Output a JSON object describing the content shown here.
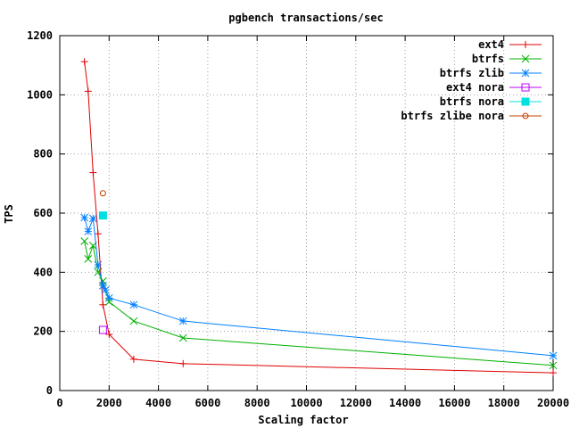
{
  "chart_data": {
    "type": "line",
    "title": "pgbench transactions/sec",
    "xlabel": "Scaling factor",
    "ylabel": "TPS",
    "xlim": [
      0,
      20000
    ],
    "ylim": [
      0,
      1200
    ],
    "xticks": [
      0,
      2000,
      4000,
      6000,
      8000,
      10000,
      12000,
      14000,
      16000,
      18000,
      20000
    ],
    "yticks": [
      0,
      200,
      400,
      600,
      800,
      1000,
      1200
    ],
    "grid": true,
    "legend_position": "top-right",
    "series": [
      {
        "name": "ext4",
        "color": "#e00000",
        "marker": "plus",
        "x": [
          1000,
          1150,
          1350,
          1550,
          1750,
          2000,
          3000,
          5000,
          20000
        ],
        "y": [
          1112,
          1012,
          737,
          530,
          290,
          190,
          106,
          91,
          60
        ]
      },
      {
        "name": "btrfs",
        "color": "#00b000",
        "marker": "cross",
        "x": [
          1000,
          1150,
          1350,
          1550,
          1750,
          2000,
          3000,
          5000,
          20000
        ],
        "y": [
          505,
          445,
          490,
          400,
          370,
          300,
          235,
          178,
          85
        ]
      },
      {
        "name": "btrfs zlib",
        "color": "#0080ff",
        "marker": "star",
        "x": [
          1000,
          1150,
          1350,
          1550,
          1750,
          1850,
          2000,
          3000,
          5000,
          20000
        ],
        "y": [
          585,
          538,
          582,
          425,
          355,
          340,
          313,
          290,
          235,
          118
        ]
      },
      {
        "name": "ext4 nora",
        "color": "#c000ff",
        "marker": "square-open",
        "x": [
          1750
        ],
        "y": [
          205
        ]
      },
      {
        "name": "btrfs nora",
        "color": "#00e0e0",
        "marker": "square-filled",
        "x": [
          1750
        ],
        "y": [
          592
        ]
      },
      {
        "name": "btrfs zlibe nora",
        "color": "#c04000",
        "marker": "circle-open",
        "x": [
          1750
        ],
        "y": [
          667
        ]
      }
    ]
  }
}
